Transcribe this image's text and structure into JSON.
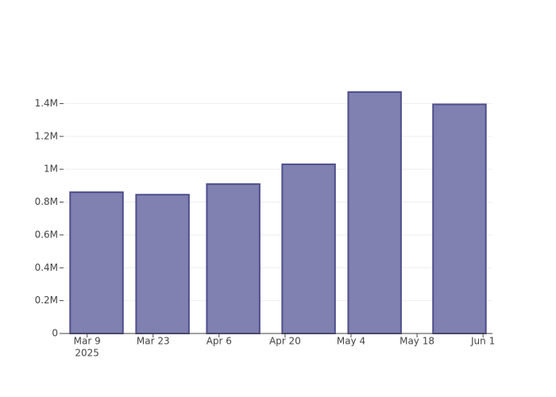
{
  "chart_data": {
    "type": "bar",
    "x": [
      "2025-03-11",
      "2025-03-25",
      "2025-04-09",
      "2025-04-25",
      "2025-05-09",
      "2025-05-27"
    ],
    "values": [
      860000,
      845000,
      910000,
      1030000,
      1470000,
      1395000
    ],
    "color": "#8080b1",
    "edge_color": "#4e4e8c",
    "bar_width_days": 11.2,
    "xlim": [
      "2025-03-04",
      "2025-06-03"
    ],
    "xticks": [
      {
        "value": "2025-03-09",
        "label": "Mar 9"
      },
      {
        "value": "2025-03-23",
        "label": "Mar 23"
      },
      {
        "value": "2025-04-06",
        "label": "Apr 6"
      },
      {
        "value": "2025-04-20",
        "label": "Apr 20"
      },
      {
        "value": "2025-05-04",
        "label": "May 4"
      },
      {
        "value": "2025-05-18",
        "label": "May 18"
      },
      {
        "value": "2025-06-01",
        "label": "Jun 1"
      }
    ],
    "x_year_label": "2025",
    "ylim": [
      0,
      1547000
    ],
    "yticks": [
      0,
      {
        "value": 200000,
        "label": "0.2M"
      },
      {
        "value": 400000,
        "label": "0.4M"
      },
      {
        "value": 600000,
        "label": "0.6M"
      },
      {
        "value": 800000,
        "label": "0.8M"
      },
      {
        "value": 1000000,
        "label": "1M"
      },
      {
        "value": 1200000,
        "label": "1.2M"
      },
      {
        "value": 1400000,
        "label": "1.4M"
      }
    ],
    "grid": true
  }
}
